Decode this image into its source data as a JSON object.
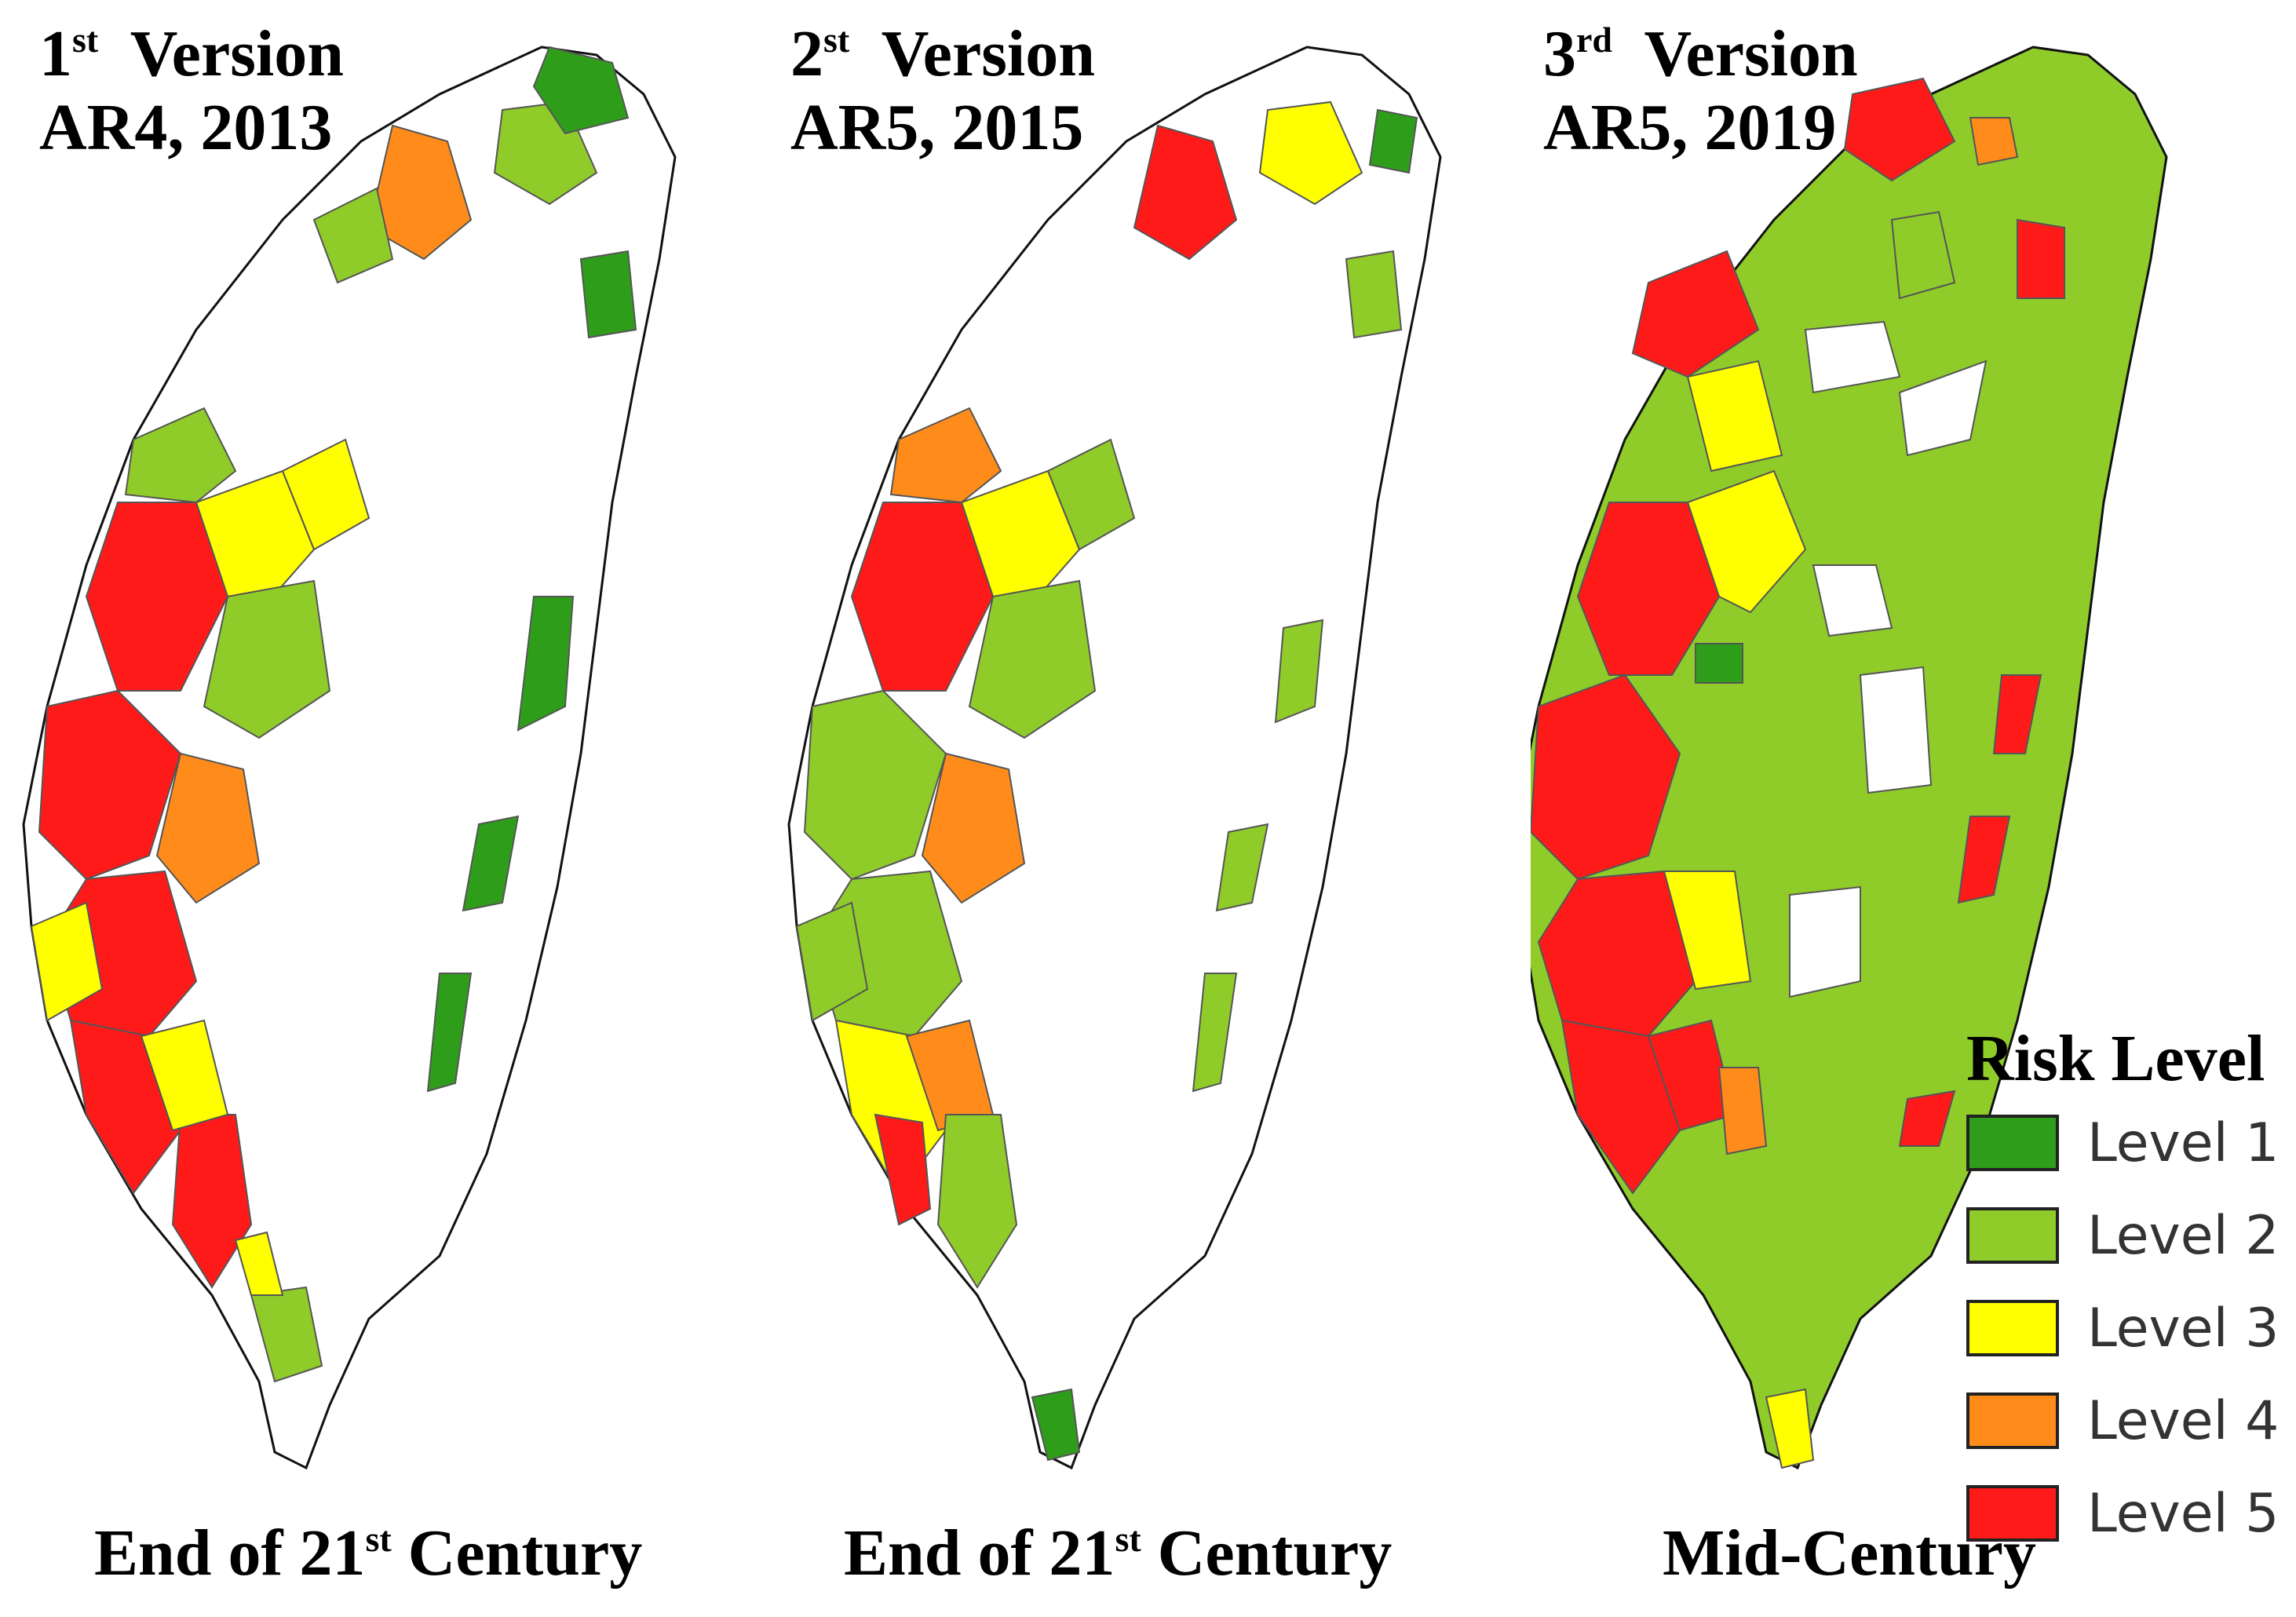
{
  "colors": {
    "level1": "#2e9e1a",
    "level2": "#8fcc2a",
    "level3": "#ffff00",
    "level4": "#ff8c1a",
    "level5": "#ff1a1a",
    "boundary": "#111111"
  },
  "panels": [
    {
      "version_ordinal": "1",
      "version_suffix": "st",
      "version_word": "Version",
      "report": "AR4, 2013",
      "caption_main": "End of 21",
      "caption_suffix": "st",
      "caption_tail": "Century"
    },
    {
      "version_ordinal": "2",
      "version_suffix": "st",
      "version_word": "Version",
      "report": "AR5, 2015",
      "caption_main": "End of 21",
      "caption_suffix": "st",
      "caption_tail": "Century"
    },
    {
      "version_ordinal": "3",
      "version_suffix": "rd",
      "version_word": "Version",
      "report": "AR5, 2019",
      "caption_main": "Mid-Century",
      "caption_suffix": "",
      "caption_tail": ""
    }
  ],
  "legend": {
    "title": "Risk Level",
    "items": [
      {
        "label": "Level 1",
        "color": "#2e9e1a"
      },
      {
        "label": "Level 2",
        "color": "#8fcc2a"
      },
      {
        "label": "Level 3",
        "color": "#ffff00"
      },
      {
        "label": "Level 4",
        "color": "#ff8c1a"
      },
      {
        "label": "Level 5",
        "color": "#ff1a1a"
      }
    ]
  }
}
